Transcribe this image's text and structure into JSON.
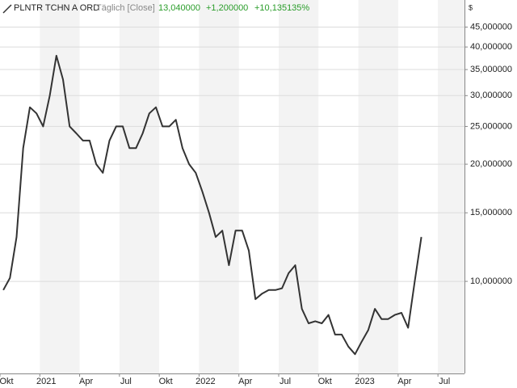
{
  "chart_data": {
    "type": "line",
    "title": "PLNTR TCHN A ORD",
    "subtitle": "Täglich [Close]",
    "header_values": [
      "13,040000",
      "+1,200000",
      "+10,135135%"
    ],
    "currency": "$",
    "log_scale": true,
    "grid": true,
    "color": "#333333",
    "categories": [
      "Okt",
      null,
      null,
      null,
      null,
      null,
      "2021",
      null,
      null,
      null,
      null,
      null,
      "Apr",
      null,
      null,
      null,
      null,
      null,
      "Jul",
      null,
      null,
      null,
      null,
      null,
      "Okt",
      null,
      null,
      null,
      null,
      null,
      "2022",
      null,
      null,
      null,
      null,
      null,
      "Apr",
      null,
      null,
      null,
      null,
      null,
      "Jul",
      null,
      null,
      null,
      null,
      null,
      "Okt",
      null,
      null,
      null,
      null,
      null,
      "2023",
      null,
      null,
      null,
      null,
      null,
      "Apr",
      null,
      null,
      null,
      null,
      null,
      "Jul",
      null,
      null,
      null
    ],
    "values": [
      9.5,
      10.2,
      13,
      22,
      28,
      27,
      25,
      30,
      38,
      33,
      25,
      24,
      23,
      23,
      20,
      19,
      23,
      25,
      25,
      22,
      22,
      24,
      27,
      28,
      25,
      25,
      26,
      22,
      20,
      19,
      17,
      15,
      13,
      13.5,
      11,
      13.5,
      13.5,
      12,
      9,
      9.3,
      9.5,
      9.5,
      9.6,
      10.5,
      11,
      8.5,
      7.8,
      7.9,
      7.8,
      8.2,
      7.3,
      7.3,
      6.8,
      6.5,
      7,
      7.5,
      8.5,
      8,
      8,
      8.2,
      8.3,
      7.6,
      10,
      13,
      null,
      null,
      null,
      null,
      null,
      null
    ],
    "ylim": [
      5.8,
      48
    ],
    "yticks": [
      {
        "value": 10,
        "label": "10,000000"
      },
      {
        "value": 15,
        "label": "15,000000"
      },
      {
        "value": 20,
        "label": "20,000000"
      },
      {
        "value": 25,
        "label": "25,000000"
      },
      {
        "value": 30,
        "label": "30,000000"
      },
      {
        "value": 35,
        "label": "35,000000"
      },
      {
        "value": 40,
        "label": "40,000000"
      },
      {
        "value": 45,
        "label": "45,000000"
      }
    ]
  }
}
